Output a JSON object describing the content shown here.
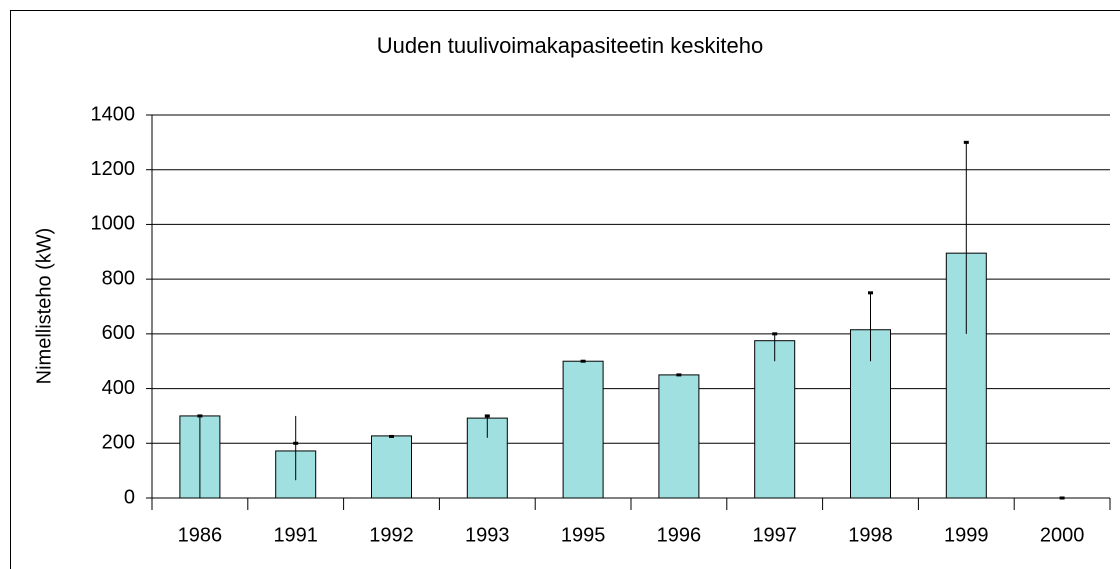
{
  "chart_data": {
    "type": "bar",
    "title": "Uuden tuulivoimakapasiteetin keskiteho",
    "y_label": "Nimellisteho (kW)",
    "categories": [
      "1986",
      "1991",
      "1992",
      "1993",
      "1995",
      "1996",
      "1997",
      "1998",
      "1999",
      "2000"
    ],
    "values": [
      300,
      172,
      227,
      292,
      500,
      450,
      575,
      615,
      895,
      0
    ],
    "low": [
      0,
      65,
      225,
      220,
      500,
      450,
      500,
      500,
      600,
      0
    ],
    "high": [
      300,
      300,
      225,
      300,
      500,
      450,
      600,
      750,
      1300,
      0
    ],
    "marker": [
      300,
      200,
      225,
      300,
      500,
      450,
      600,
      750,
      1300,
      0
    ],
    "color": "#a0e0e0",
    "ylim": [
      0,
      1400
    ],
    "yticks": [
      0,
      200,
      400,
      600,
      800,
      1000,
      1200,
      1400
    ],
    "grid": true
  }
}
